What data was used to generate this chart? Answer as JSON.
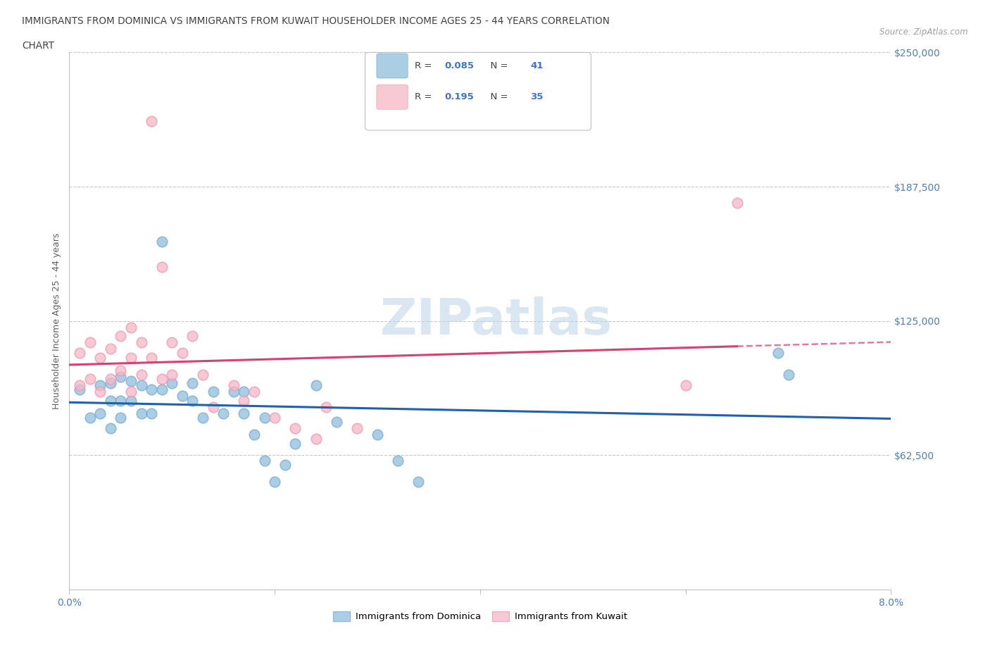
{
  "title_line1": "IMMIGRANTS FROM DOMINICA VS IMMIGRANTS FROM KUWAIT HOUSEHOLDER INCOME AGES 25 - 44 YEARS CORRELATION",
  "title_line2": "CHART",
  "source_text": "Source: ZipAtlas.com",
  "ylabel": "Householder Income Ages 25 - 44 years",
  "xlim": [
    0.0,
    0.08
  ],
  "ylim": [
    0,
    250000
  ],
  "ytick_labels": [
    "$62,500",
    "$125,000",
    "$187,500",
    "$250,000"
  ],
  "ytick_values": [
    62500,
    125000,
    187500,
    250000
  ],
  "xtick_values": [
    0.0,
    0.02,
    0.04,
    0.06,
    0.08
  ],
  "xtick_labels": [
    "0.0%",
    "",
    "",
    "",
    "8.0%"
  ],
  "watermark": "ZIPatlas",
  "dominica_color": "#90bedd",
  "kuwait_color": "#f5b8c8",
  "dominica_edge_color": "#7aadd0",
  "kuwait_edge_color": "#ef9ab0",
  "dominica_line_color": "#2060b0",
  "kuwait_line_color": "#d84070",
  "dominica_scatter_x": [
    0.001,
    0.002,
    0.003,
    0.003,
    0.004,
    0.004,
    0.004,
    0.005,
    0.005,
    0.005,
    0.006,
    0.006,
    0.007,
    0.007,
    0.008,
    0.008,
    0.009,
    0.009,
    0.01,
    0.011,
    0.012,
    0.012,
    0.013,
    0.014,
    0.015,
    0.016,
    0.017,
    0.018,
    0.019,
    0.02,
    0.021,
    0.022,
    0.024,
    0.026,
    0.03,
    0.032,
    0.034,
    0.017,
    0.019,
    0.069,
    0.07
  ],
  "dominica_scatter_y": [
    93000,
    80000,
    95000,
    82000,
    96000,
    88000,
    75000,
    99000,
    88000,
    80000,
    97000,
    88000,
    95000,
    82000,
    93000,
    82000,
    162000,
    93000,
    96000,
    90000,
    96000,
    88000,
    80000,
    92000,
    82000,
    92000,
    82000,
    72000,
    60000,
    50000,
    58000,
    68000,
    95000,
    78000,
    72000,
    60000,
    50000,
    92000,
    80000,
    110000,
    100000
  ],
  "kuwait_scatter_x": [
    0.001,
    0.001,
    0.002,
    0.002,
    0.003,
    0.003,
    0.004,
    0.004,
    0.005,
    0.005,
    0.006,
    0.006,
    0.006,
    0.007,
    0.007,
    0.008,
    0.008,
    0.009,
    0.009,
    0.01,
    0.01,
    0.011,
    0.012,
    0.013,
    0.014,
    0.016,
    0.017,
    0.018,
    0.02,
    0.022,
    0.024,
    0.025,
    0.028,
    0.06,
    0.065
  ],
  "kuwait_scatter_y": [
    110000,
    95000,
    115000,
    98000,
    108000,
    92000,
    112000,
    98000,
    118000,
    102000,
    122000,
    108000,
    92000,
    115000,
    100000,
    218000,
    108000,
    150000,
    98000,
    115000,
    100000,
    110000,
    118000,
    100000,
    85000,
    95000,
    88000,
    92000,
    80000,
    75000,
    70000,
    85000,
    75000,
    95000,
    180000
  ],
  "legend_R_dom": "0.085",
  "legend_N_dom": "41",
  "legend_R_kuw": "0.195",
  "legend_N_kuw": "35",
  "legend_label_dom": "Immigrants from Dominica",
  "legend_label_kuw": "Immigrants from Kuwait"
}
